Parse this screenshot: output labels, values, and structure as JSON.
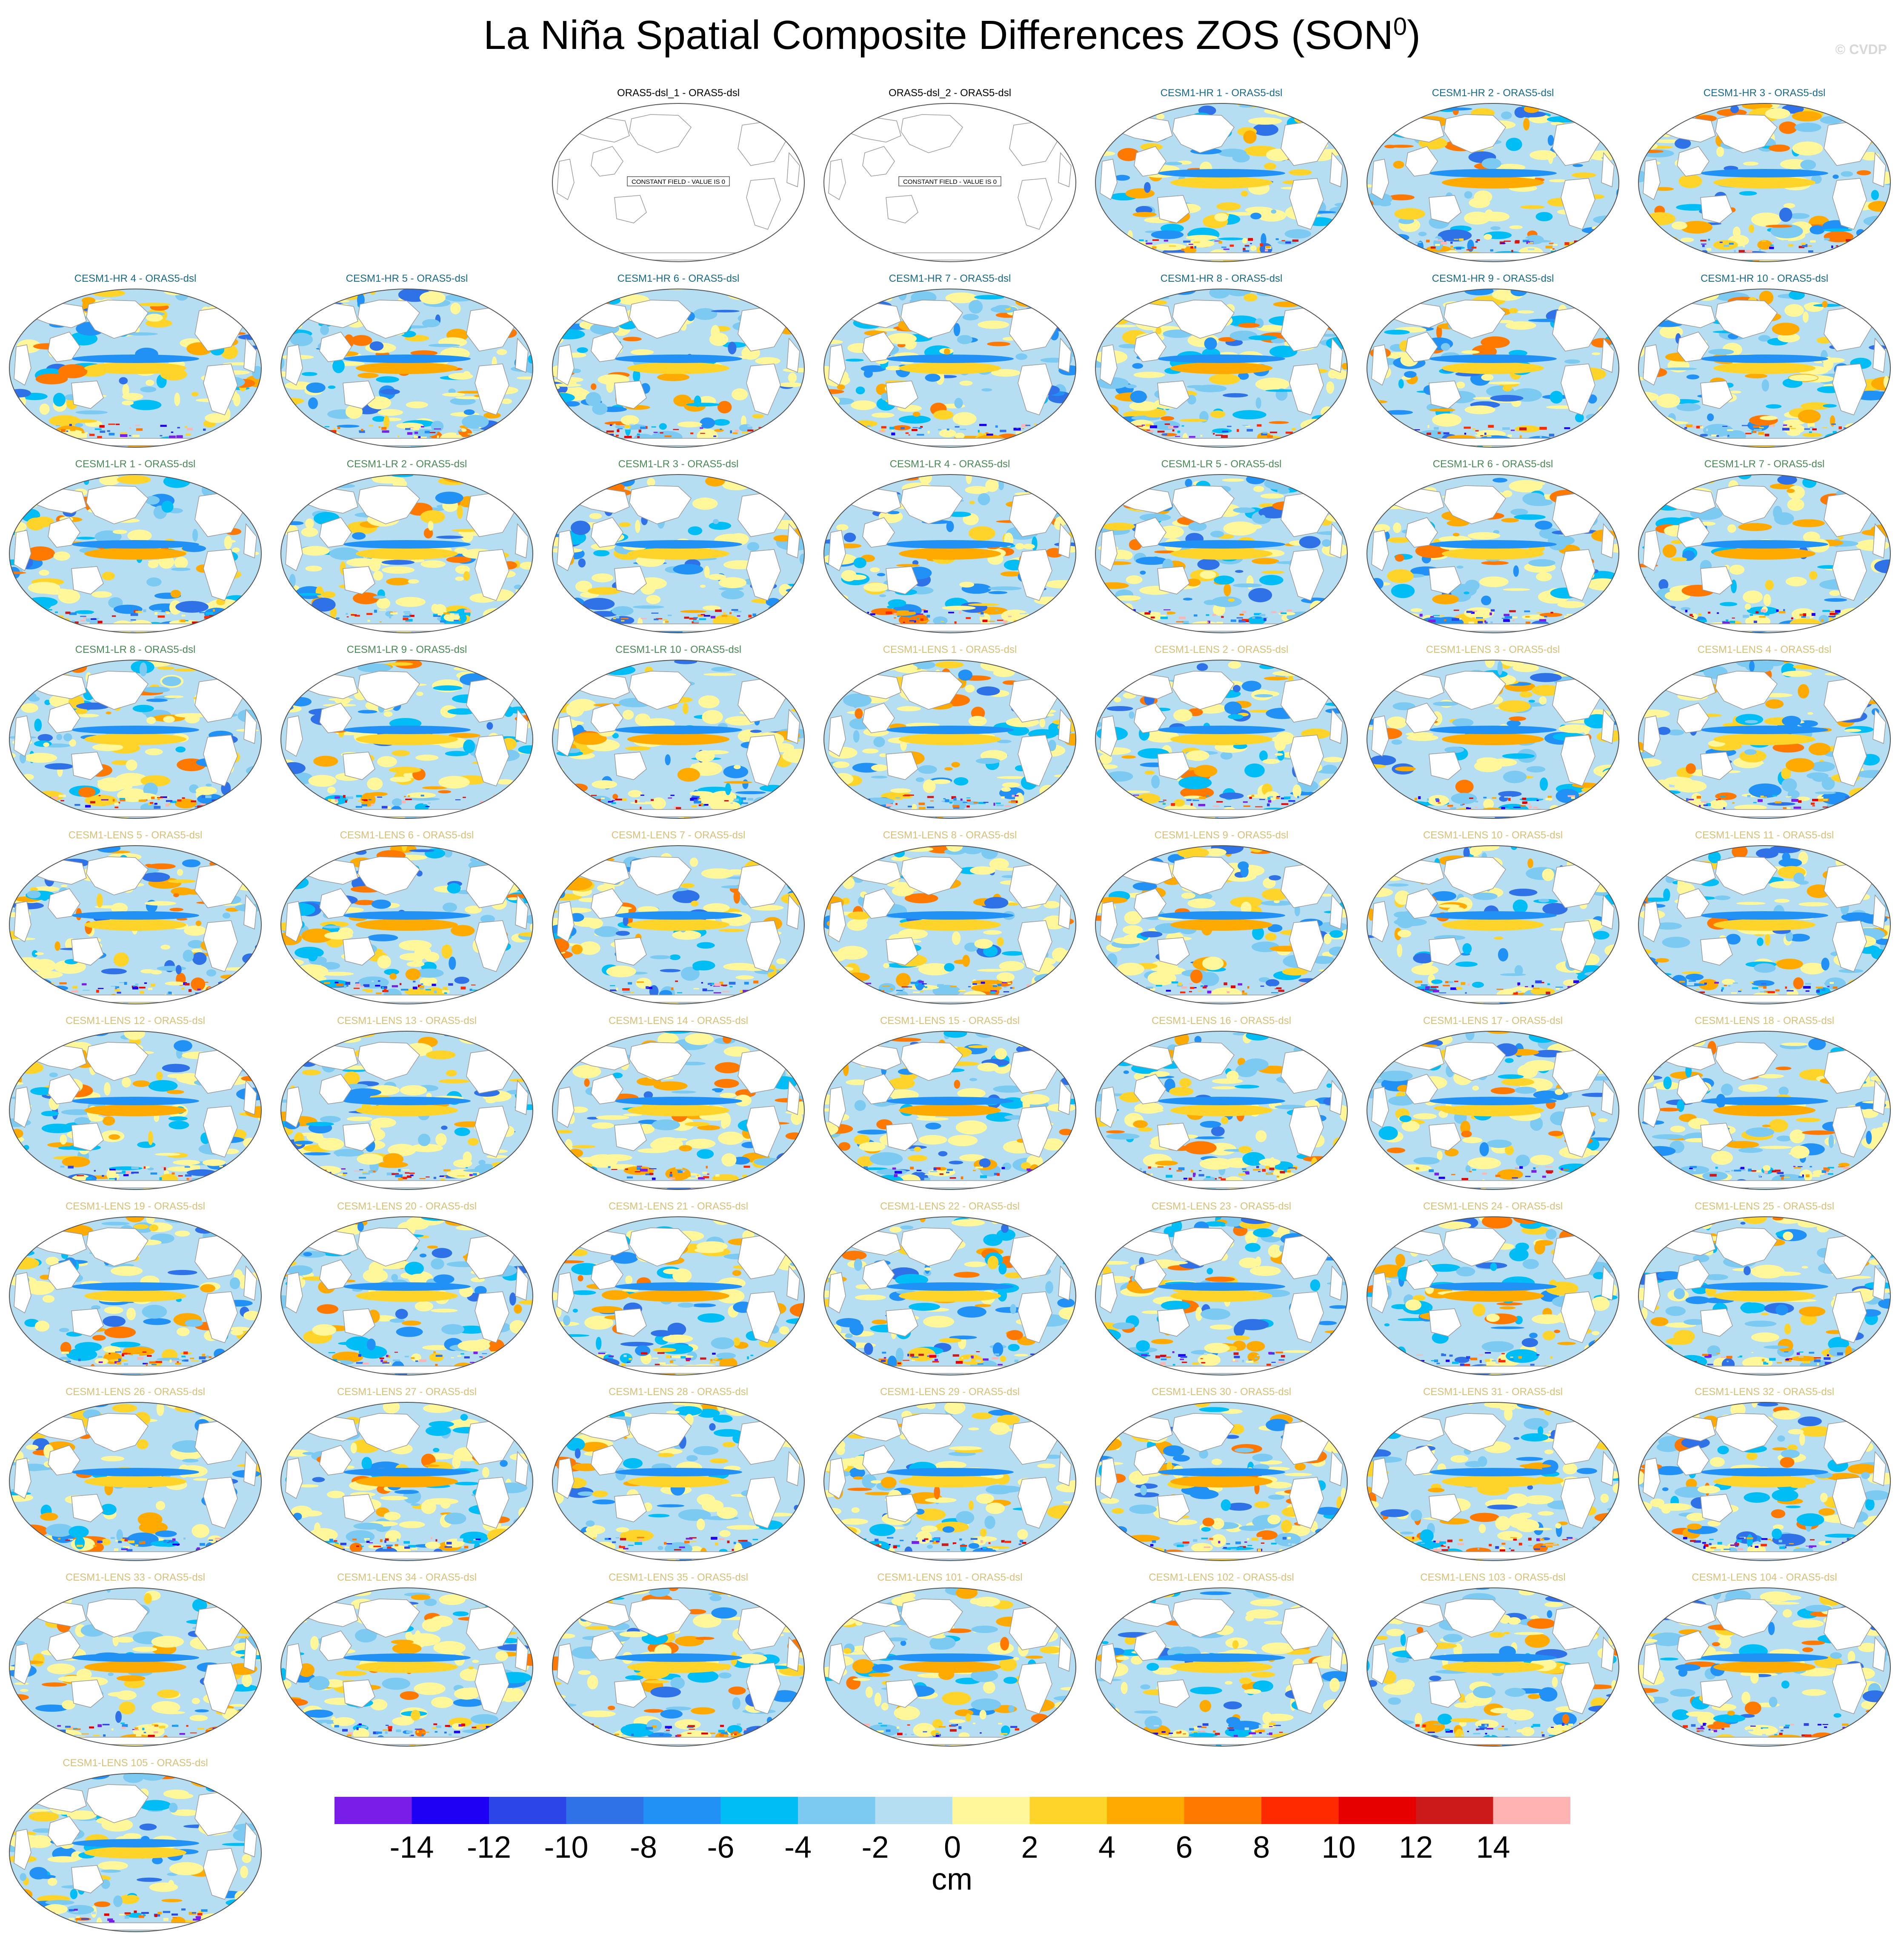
{
  "header": {
    "title_main": "La Niña Spatial Composite Differences ZOS (SON",
    "title_sup": "0",
    "title_end": ")",
    "watermark": "© CVDP"
  },
  "constant_field_note": "CONSTANT FIELD - VALUE IS 0",
  "panel_colors": {
    "ORAS5": "#000000",
    "CESM1-HR": "#1a6a8a",
    "CESM1-LR": "#4a8a56",
    "CESM1-LENS": "#d8c078"
  },
  "panels": [
    {
      "label": "ORAS5-dsl_1 - ORAS5-dsl",
      "group": "ORAS5",
      "constant": true
    },
    {
      "label": "ORAS5-dsl_2 - ORAS5-dsl",
      "group": "ORAS5",
      "constant": true
    },
    {
      "label": "CESM1-HR 1 - ORAS5-dsl",
      "group": "CESM1-HR"
    },
    {
      "label": "CESM1-HR 2 - ORAS5-dsl",
      "group": "CESM1-HR"
    },
    {
      "label": "CESM1-HR 3 - ORAS5-dsl",
      "group": "CESM1-HR"
    },
    {
      "label": "CESM1-HR 4 - ORAS5-dsl",
      "group": "CESM1-HR"
    },
    {
      "label": "CESM1-HR 5 - ORAS5-dsl",
      "group": "CESM1-HR"
    },
    {
      "label": "CESM1-HR 6 - ORAS5-dsl",
      "group": "CESM1-HR"
    },
    {
      "label": "CESM1-HR 7 - ORAS5-dsl",
      "group": "CESM1-HR"
    },
    {
      "label": "CESM1-HR 8 - ORAS5-dsl",
      "group": "CESM1-HR"
    },
    {
      "label": "CESM1-HR 9 - ORAS5-dsl",
      "group": "CESM1-HR"
    },
    {
      "label": "CESM1-HR 10 - ORAS5-dsl",
      "group": "CESM1-HR"
    },
    {
      "label": "CESM1-LR 1 - ORAS5-dsl",
      "group": "CESM1-LR"
    },
    {
      "label": "CESM1-LR 2 - ORAS5-dsl",
      "group": "CESM1-LR"
    },
    {
      "label": "CESM1-LR 3 - ORAS5-dsl",
      "group": "CESM1-LR"
    },
    {
      "label": "CESM1-LR 4 - ORAS5-dsl",
      "group": "CESM1-LR"
    },
    {
      "label": "CESM1-LR 5 - ORAS5-dsl",
      "group": "CESM1-LR"
    },
    {
      "label": "CESM1-LR 6 - ORAS5-dsl",
      "group": "CESM1-LR"
    },
    {
      "label": "CESM1-LR 7 - ORAS5-dsl",
      "group": "CESM1-LR"
    },
    {
      "label": "CESM1-LR 8 - ORAS5-dsl",
      "group": "CESM1-LR"
    },
    {
      "label": "CESM1-LR 9 - ORAS5-dsl",
      "group": "CESM1-LR"
    },
    {
      "label": "CESM1-LR 10 - ORAS5-dsl",
      "group": "CESM1-LR"
    },
    {
      "label": "CESM1-LENS 1 - ORAS5-dsl",
      "group": "CESM1-LENS"
    },
    {
      "label": "CESM1-LENS 2 - ORAS5-dsl",
      "group": "CESM1-LENS"
    },
    {
      "label": "CESM1-LENS 3 - ORAS5-dsl",
      "group": "CESM1-LENS"
    },
    {
      "label": "CESM1-LENS 4 - ORAS5-dsl",
      "group": "CESM1-LENS"
    },
    {
      "label": "CESM1-LENS 5 - ORAS5-dsl",
      "group": "CESM1-LENS"
    },
    {
      "label": "CESM1-LENS 6 - ORAS5-dsl",
      "group": "CESM1-LENS"
    },
    {
      "label": "CESM1-LENS 7 - ORAS5-dsl",
      "group": "CESM1-LENS"
    },
    {
      "label": "CESM1-LENS 8 - ORAS5-dsl",
      "group": "CESM1-LENS"
    },
    {
      "label": "CESM1-LENS 9 - ORAS5-dsl",
      "group": "CESM1-LENS"
    },
    {
      "label": "CESM1-LENS 10 - ORAS5-dsl",
      "group": "CESM1-LENS"
    },
    {
      "label": "CESM1-LENS 11 - ORAS5-dsl",
      "group": "CESM1-LENS"
    },
    {
      "label": "CESM1-LENS 12 - ORAS5-dsl",
      "group": "CESM1-LENS"
    },
    {
      "label": "CESM1-LENS 13 - ORAS5-dsl",
      "group": "CESM1-LENS"
    },
    {
      "label": "CESM1-LENS 14 - ORAS5-dsl",
      "group": "CESM1-LENS"
    },
    {
      "label": "CESM1-LENS 15 - ORAS5-dsl",
      "group": "CESM1-LENS"
    },
    {
      "label": "CESM1-LENS 16 - ORAS5-dsl",
      "group": "CESM1-LENS"
    },
    {
      "label": "CESM1-LENS 17 - ORAS5-dsl",
      "group": "CESM1-LENS"
    },
    {
      "label": "CESM1-LENS 18 - ORAS5-dsl",
      "group": "CESM1-LENS"
    },
    {
      "label": "CESM1-LENS 19 - ORAS5-dsl",
      "group": "CESM1-LENS"
    },
    {
      "label": "CESM1-LENS 20 - ORAS5-dsl",
      "group": "CESM1-LENS"
    },
    {
      "label": "CESM1-LENS 21 - ORAS5-dsl",
      "group": "CESM1-LENS"
    },
    {
      "label": "CESM1-LENS 22 - ORAS5-dsl",
      "group": "CESM1-LENS"
    },
    {
      "label": "CESM1-LENS 23 - ORAS5-dsl",
      "group": "CESM1-LENS"
    },
    {
      "label": "CESM1-LENS 24 - ORAS5-dsl",
      "group": "CESM1-LENS"
    },
    {
      "label": "CESM1-LENS 25 - ORAS5-dsl",
      "group": "CESM1-LENS"
    },
    {
      "label": "CESM1-LENS 26 - ORAS5-dsl",
      "group": "CESM1-LENS"
    },
    {
      "label": "CESM1-LENS 27 - ORAS5-dsl",
      "group": "CESM1-LENS"
    },
    {
      "label": "CESM1-LENS 28 - ORAS5-dsl",
      "group": "CESM1-LENS"
    },
    {
      "label": "CESM1-LENS 29 - ORAS5-dsl",
      "group": "CESM1-LENS"
    },
    {
      "label": "CESM1-LENS 30 - ORAS5-dsl",
      "group": "CESM1-LENS"
    },
    {
      "label": "CESM1-LENS 31 - ORAS5-dsl",
      "group": "CESM1-LENS"
    },
    {
      "label": "CESM1-LENS 32 - ORAS5-dsl",
      "group": "CESM1-LENS"
    },
    {
      "label": "CESM1-LENS 33 - ORAS5-dsl",
      "group": "CESM1-LENS"
    },
    {
      "label": "CESM1-LENS 34 - ORAS5-dsl",
      "group": "CESM1-LENS"
    },
    {
      "label": "CESM1-LENS 35 - ORAS5-dsl",
      "group": "CESM1-LENS"
    },
    {
      "label": "CESM1-LENS 101 - ORAS5-dsl",
      "group": "CESM1-LENS"
    },
    {
      "label": "CESM1-LENS 102 - ORAS5-dsl",
      "group": "CESM1-LENS"
    },
    {
      "label": "CESM1-LENS 103 - ORAS5-dsl",
      "group": "CESM1-LENS"
    },
    {
      "label": "CESM1-LENS 104 - ORAS5-dsl",
      "group": "CESM1-LENS"
    },
    {
      "label": "CESM1-LENS 105 - ORAS5-dsl",
      "group": "CESM1-LENS"
    }
  ],
  "colorbar": {
    "units": "cm",
    "tick_labels": [
      "-14",
      "-12",
      "-10",
      "-8",
      "-6",
      "-4",
      "-2",
      "0",
      "2",
      "4",
      "6",
      "8",
      "10",
      "12",
      "14"
    ],
    "colors": [
      "#7b1de8",
      "#1e00f5",
      "#2b45e8",
      "#2f72e8",
      "#2291f5",
      "#00bef5",
      "#7ccaf2",
      "#b6def2",
      "#fff799",
      "#ffd42a",
      "#ffaa00",
      "#ff7800",
      "#ff2a00",
      "#e60000",
      "#cc1a1a",
      "#ffb3b3"
    ]
  }
}
